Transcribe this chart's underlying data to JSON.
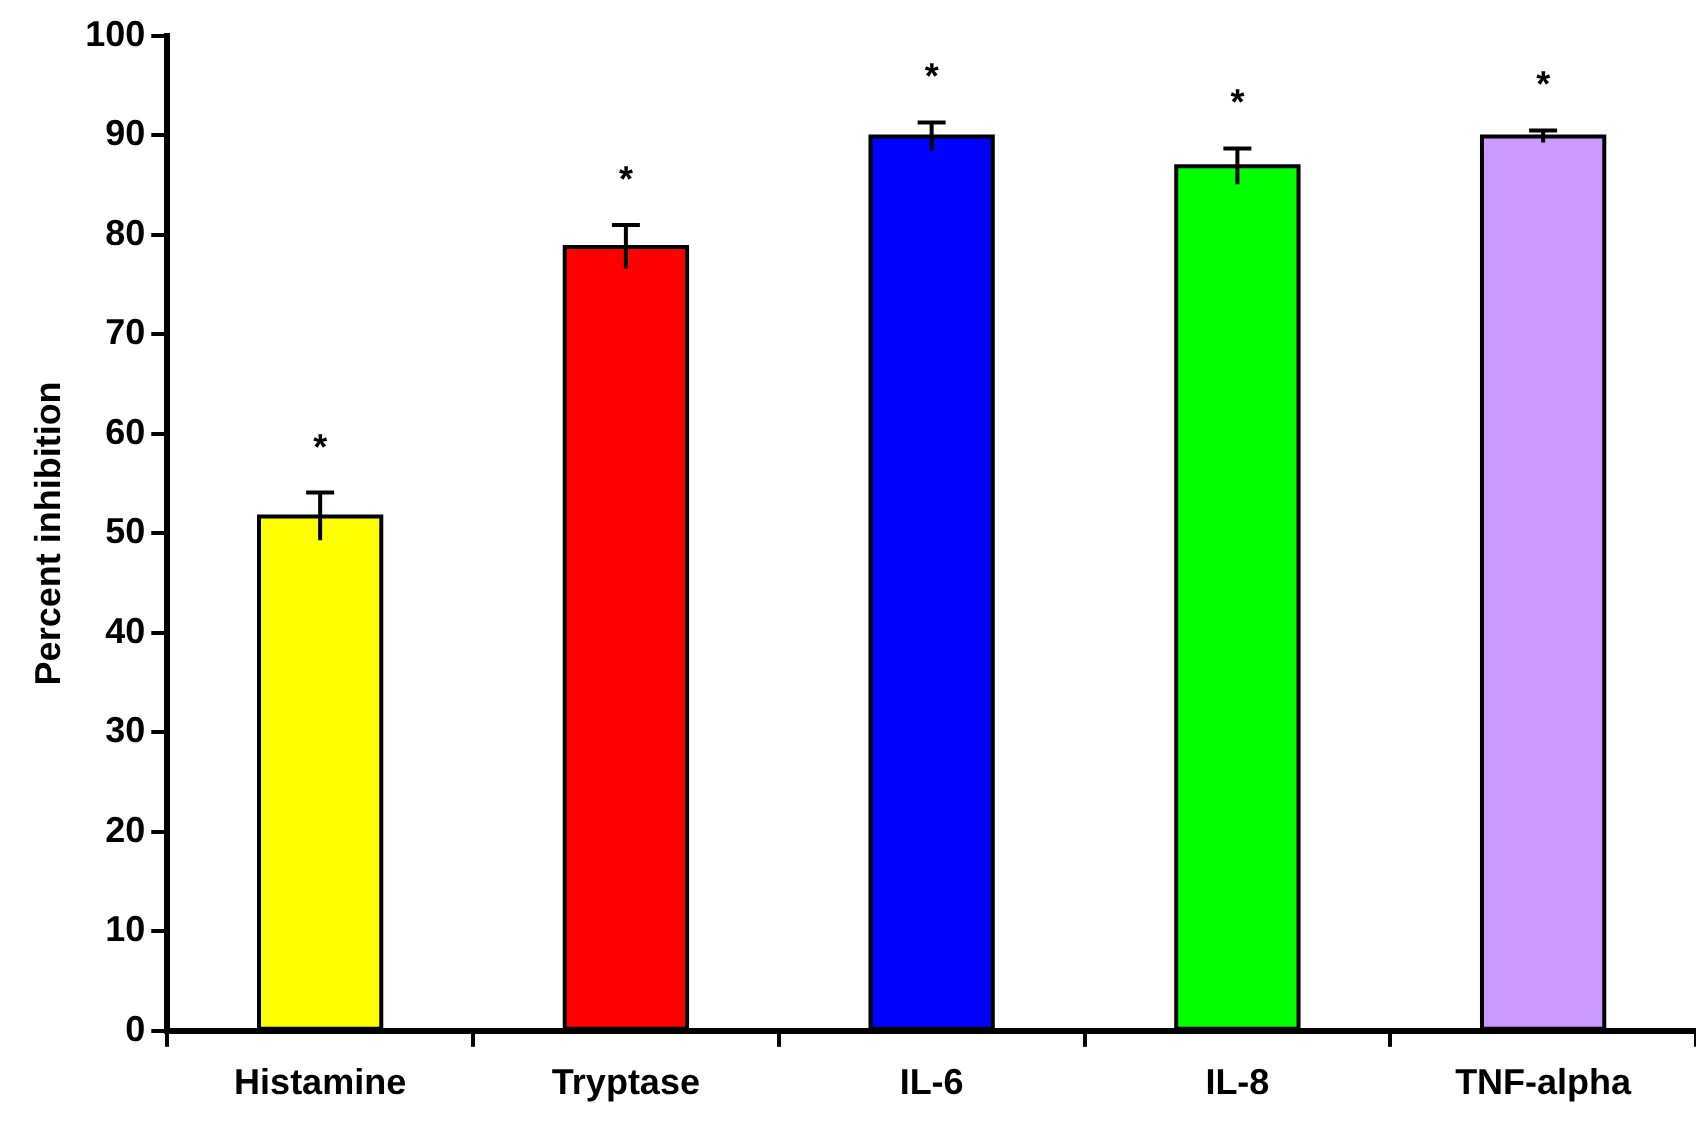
{
  "chart_data": {
    "type": "bar",
    "ylabel": "Percent inhibition",
    "categories": [
      "Histamine",
      "Tryptase",
      "IL-6",
      "IL-8",
      "TNF-alpha"
    ],
    "values": [
      51.7,
      78.8,
      89.9,
      86.9,
      89.9
    ],
    "errors": [
      2.4,
      2.2,
      1.4,
      1.8,
      0.6
    ],
    "colors": [
      "#ffff00",
      "#ff0000",
      "#0000ff",
      "#00ff00",
      "#cc99ff"
    ],
    "ylim": [
      0,
      100
    ],
    "yticks": [
      0,
      10,
      20,
      30,
      40,
      50,
      60,
      70,
      80,
      90,
      100
    ],
    "grid": false,
    "legend": false,
    "annotations": [
      "*",
      "*",
      "*",
      "*",
      "*"
    ]
  }
}
